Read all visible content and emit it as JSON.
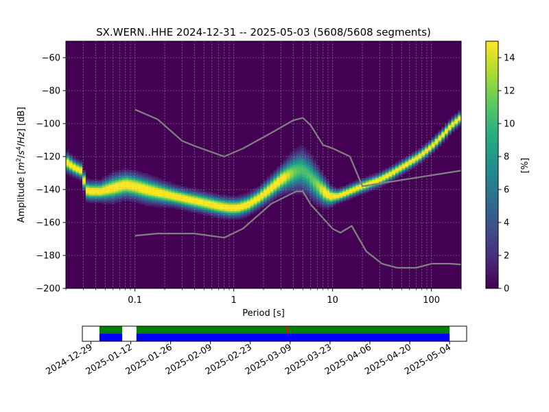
{
  "title": "SX.WERN..HHE   2024-12-31 -- 2025-05-03  (5608/5608 segments)",
  "colors": {
    "background": "#440154",
    "noise_model": "#808080",
    "grid": "#aaaaaa",
    "coverage_data": "#0000ff",
    "coverage_used": "#008000",
    "coverage_gap": "#ff0000"
  },
  "chart_data": [
    {
      "type": "heatmap",
      "title": "SX.WERN..HHE   2024-12-31 -- 2025-05-03  (5608/5608 segments)",
      "xlabel": "Period [s]",
      "ylabel_parts": [
        "Amplitude [",
        "m",
        "2",
        "/",
        "s",
        "4",
        "/",
        "Hz",
        "] [dB]"
      ],
      "xscale": "log",
      "xlim": [
        0.02,
        200
      ],
      "ylim": [
        -200,
        -50
      ],
      "xticks": [
        {
          "value": 0.1,
          "label": "0.1"
        },
        {
          "value": 1,
          "label": "1"
        },
        {
          "value": 10,
          "label": "10"
        },
        {
          "value": 100,
          "label": "100"
        }
      ],
      "yticks": [
        {
          "value": -60,
          "label": "−60"
        },
        {
          "value": -80,
          "label": "−80"
        },
        {
          "value": -100,
          "label": "−100"
        },
        {
          "value": -120,
          "label": "−120"
        },
        {
          "value": -140,
          "label": "−140"
        },
        {
          "value": -160,
          "label": "−160"
        },
        {
          "value": -180,
          "label": "−180"
        },
        {
          "value": -200,
          "label": "−200"
        }
      ],
      "grid": true,
      "colorbar": {
        "label": "[%]",
        "range": [
          0,
          15
        ],
        "ticks": [
          {
            "value": 0,
            "label": "0"
          },
          {
            "value": 2,
            "label": "2"
          },
          {
            "value": 4,
            "label": "4"
          },
          {
            "value": 6,
            "label": "6"
          },
          {
            "value": 8,
            "label": "8"
          },
          {
            "value": 10,
            "label": "10"
          },
          {
            "value": 12,
            "label": "12"
          },
          {
            "value": 14,
            "label": "14"
          }
        ]
      },
      "mode_curve": {
        "period": [
          0.02,
          0.025,
          0.03,
          0.031,
          0.035,
          0.045,
          0.06,
          0.08,
          0.1,
          0.13,
          0.18,
          0.25,
          0.35,
          0.5,
          0.7,
          0.9,
          1.1,
          1.4,
          1.8,
          2.3,
          3,
          3.6,
          4.2,
          4.8,
          5.5,
          6.5,
          7.5,
          8.5,
          9.5,
          11,
          12.5,
          15,
          18,
          22,
          30,
          40,
          55,
          75,
          100,
          130,
          160,
          200
        ],
        "db": [
          -123,
          -127,
          -129,
          -140,
          -141,
          -141,
          -139,
          -137,
          -138,
          -140,
          -142,
          -144,
          -146,
          -148,
          -150,
          -151,
          -151,
          -149,
          -145,
          -140,
          -134,
          -131,
          -129,
          -128,
          -130,
          -135,
          -139,
          -142,
          -144,
          -144,
          -143,
          -141,
          -139,
          -137,
          -134,
          -130,
          -125,
          -120,
          -114,
          -107,
          -101,
          -96
        ],
        "spread": [
          3,
          2.5,
          2.5,
          3,
          3,
          3,
          4,
          4,
          4,
          4,
          3.5,
          3,
          3,
          3,
          3,
          3,
          3,
          3,
          3,
          3.5,
          4,
          5,
          6,
          6.5,
          6.5,
          6,
          5,
          4,
          3,
          2,
          2,
          2,
          2,
          2,
          2,
          2,
          2,
          2,
          2,
          2,
          2,
          2
        ]
      },
      "noise_models": {
        "high": {
          "period": [
            0.1,
            0.17,
            0.3,
            0.4,
            0.8,
            1.25,
            2.5,
            4.0,
            5.0,
            6.0,
            8.0,
            10.0,
            15.0,
            20.0,
            200
          ],
          "db": [
            -91.5,
            -97.4,
            -110.5,
            -113.5,
            -120,
            -115,
            -105,
            -98,
            -96.5,
            -101,
            -113,
            -115,
            -120,
            -138,
            -128.5
          ]
        },
        "low": {
          "period": [
            0.1,
            0.17,
            0.4,
            0.8,
            1.24,
            2.4,
            4.3,
            5.0,
            6.0,
            10.0,
            12.0,
            15.6,
            21.9,
            31.6,
            45,
            70,
            101,
            154,
            200
          ],
          "db": [
            -168,
            -166.7,
            -166.7,
            -169.2,
            -163.7,
            -148.6,
            -141.1,
            -141.1,
            -149,
            -163.8,
            -166.2,
            -162.1,
            -177.5,
            -185,
            -187.5,
            -187.5,
            -185,
            -185,
            -185.5
          ]
        }
      }
    },
    {
      "type": "timeline",
      "date_ticks": [
        "2024-12-29",
        "2025-01-12",
        "2025-01-26",
        "2025-02-09",
        "2025-02-23",
        "2025-03-09",
        "2025-03-23",
        "2025-04-06",
        "2025-04-20",
        "2025-05-04"
      ],
      "xlim": [
        "2024-12-26",
        "2025-05-10"
      ],
      "data_available": [
        [
          "2025-01-01",
          "2025-01-09"
        ],
        [
          "2025-01-14",
          "2025-05-04"
        ]
      ],
      "segments_used": [
        [
          "2025-01-01",
          "2025-01-09"
        ],
        [
          "2025-01-14",
          "2025-05-04"
        ]
      ],
      "gaps": [
        "2025-03-08"
      ]
    }
  ]
}
